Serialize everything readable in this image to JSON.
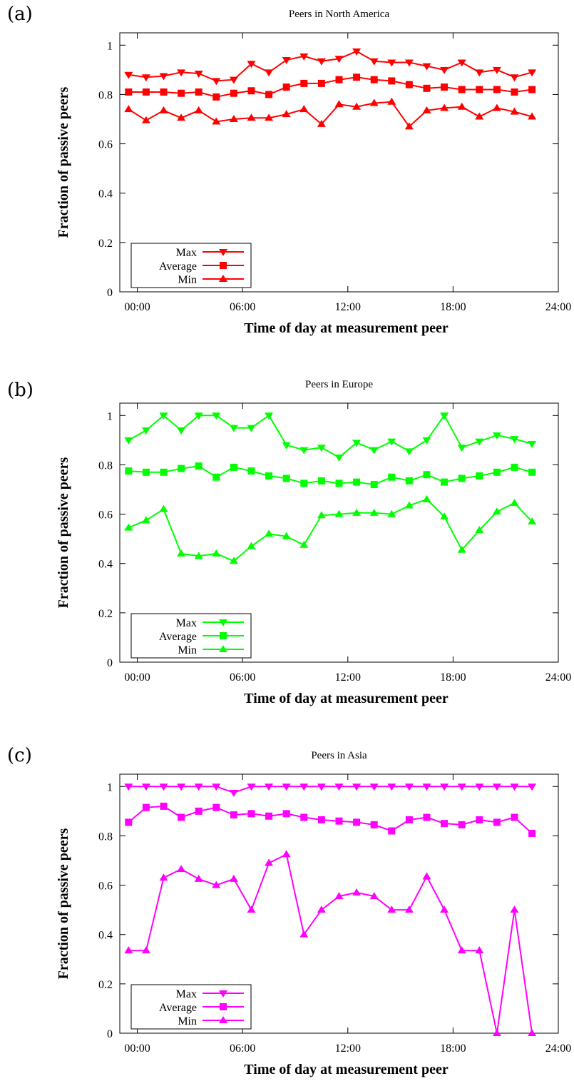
{
  "chart_data": [
    {
      "panel_label": "(a)",
      "type": "line",
      "title": "Peers in North America",
      "xlabel": "Time of day at measurement peer",
      "ylabel": "Fraction of passive peers",
      "x_ticks": [
        "00:00",
        "06:00",
        "12:00",
        "18:00",
        "24:00"
      ],
      "y_ticks": [
        "0",
        "0.2",
        "0.4",
        "0.6",
        "0.8",
        "1"
      ],
      "xlim": [
        -1,
        24
      ],
      "ylim": [
        0,
        1.05
      ],
      "legend_position": "bottom-left",
      "color": "#ff0000",
      "x": [
        -0.5,
        0.5,
        1.5,
        2.5,
        3.5,
        4.5,
        5.5,
        6.5,
        7.5,
        8.5,
        9.5,
        10.5,
        11.5,
        12.5,
        13.5,
        14.5,
        15.5,
        16.5,
        17.5,
        18.5,
        19.5,
        20.5,
        21.5,
        22.5
      ],
      "series": [
        {
          "name": "Max",
          "marker": "triangle-down",
          "values": [
            0.88,
            0.87,
            0.875,
            0.89,
            0.885,
            0.855,
            0.86,
            0.925,
            0.89,
            0.94,
            0.955,
            0.935,
            0.945,
            0.975,
            0.935,
            0.93,
            0.93,
            0.915,
            0.9,
            0.93,
            0.89,
            0.9,
            0.87,
            0.89
          ]
        },
        {
          "name": "Average",
          "marker": "square",
          "values": [
            0.81,
            0.81,
            0.81,
            0.805,
            0.81,
            0.79,
            0.805,
            0.815,
            0.8,
            0.83,
            0.845,
            0.845,
            0.86,
            0.87,
            0.86,
            0.855,
            0.84,
            0.825,
            0.83,
            0.82,
            0.82,
            0.82,
            0.81,
            0.82
          ]
        },
        {
          "name": "Min",
          "marker": "triangle-up",
          "values": [
            0.74,
            0.695,
            0.735,
            0.705,
            0.735,
            0.69,
            0.7,
            0.705,
            0.705,
            0.72,
            0.74,
            0.68,
            0.76,
            0.75,
            0.765,
            0.77,
            0.67,
            0.735,
            0.745,
            0.75,
            0.71,
            0.745,
            0.73,
            0.71
          ]
        }
      ]
    },
    {
      "panel_label": "(b)",
      "type": "line",
      "title": "Peers in Europe",
      "xlabel": "Time of day at measurement peer",
      "ylabel": "Fraction of passive peers",
      "x_ticks": [
        "00:00",
        "06:00",
        "12:00",
        "18:00",
        "24:00"
      ],
      "y_ticks": [
        "0",
        "0.2",
        "0.4",
        "0.6",
        "0.8",
        "1"
      ],
      "xlim": [
        -1,
        24
      ],
      "ylim": [
        0,
        1.05
      ],
      "legend_position": "bottom-left",
      "color": "#00ff00",
      "x": [
        -0.5,
        0.5,
        1.5,
        2.5,
        3.5,
        4.5,
        5.5,
        6.5,
        7.5,
        8.5,
        9.5,
        10.5,
        11.5,
        12.5,
        13.5,
        14.5,
        15.5,
        16.5,
        17.5,
        18.5,
        19.5,
        20.5,
        21.5,
        22.5
      ],
      "series": [
        {
          "name": "Max",
          "marker": "triangle-down",
          "values": [
            0.9,
            0.94,
            1.0,
            0.94,
            1.0,
            1.0,
            0.95,
            0.95,
            1.0,
            0.88,
            0.86,
            0.87,
            0.83,
            0.89,
            0.86,
            0.895,
            0.855,
            0.9,
            1.0,
            0.87,
            0.895,
            0.92,
            0.905,
            0.885
          ]
        },
        {
          "name": "Average",
          "marker": "square",
          "values": [
            0.775,
            0.77,
            0.77,
            0.785,
            0.795,
            0.75,
            0.79,
            0.775,
            0.755,
            0.745,
            0.725,
            0.735,
            0.725,
            0.73,
            0.72,
            0.75,
            0.735,
            0.76,
            0.73,
            0.745,
            0.755,
            0.77,
            0.79,
            0.77
          ]
        },
        {
          "name": "Min",
          "marker": "triangle-up",
          "values": [
            0.545,
            0.575,
            0.62,
            0.44,
            0.43,
            0.44,
            0.41,
            0.47,
            0.52,
            0.51,
            0.475,
            0.595,
            0.6,
            0.605,
            0.605,
            0.6,
            0.635,
            0.66,
            0.59,
            0.455,
            0.535,
            0.61,
            0.645,
            0.57
          ]
        }
      ]
    },
    {
      "panel_label": "(c)",
      "type": "line",
      "title": "Peers in Asia",
      "xlabel": "Time of day at measurement peer",
      "ylabel": "Fraction of passive peers",
      "x_ticks": [
        "00:00",
        "06:00",
        "12:00",
        "18:00",
        "24:00"
      ],
      "y_ticks": [
        "0",
        "0.2",
        "0.4",
        "0.6",
        "0.8",
        "1"
      ],
      "xlim": [
        -1,
        24
      ],
      "ylim": [
        0,
        1.05
      ],
      "legend_position": "bottom-left",
      "color": "#ff00ff",
      "x": [
        -0.5,
        0.5,
        1.5,
        2.5,
        3.5,
        4.5,
        5.5,
        6.5,
        7.5,
        8.5,
        9.5,
        10.5,
        11.5,
        12.5,
        13.5,
        14.5,
        15.5,
        16.5,
        17.5,
        18.5,
        19.5,
        20.5,
        21.5,
        22.5
      ],
      "series": [
        {
          "name": "Max",
          "marker": "triangle-down",
          "values": [
            1.0,
            1.0,
            1.0,
            1.0,
            1.0,
            1.0,
            0.975,
            1.0,
            1.0,
            1.0,
            1.0,
            1.0,
            1.0,
            1.0,
            1.0,
            1.0,
            1.0,
            1.0,
            1.0,
            1.0,
            1.0,
            1.0,
            1.0,
            1.0
          ]
        },
        {
          "name": "Average",
          "marker": "square",
          "values": [
            0.855,
            0.915,
            0.92,
            0.875,
            0.9,
            0.915,
            0.885,
            0.89,
            0.88,
            0.89,
            0.875,
            0.865,
            0.86,
            0.855,
            0.845,
            0.82,
            0.865,
            0.875,
            0.85,
            0.845,
            0.865,
            0.855,
            0.875,
            0.81
          ]
        },
        {
          "name": "Min",
          "marker": "triangle-up",
          "values": [
            0.335,
            0.335,
            0.63,
            0.665,
            0.625,
            0.6,
            0.625,
            0.5,
            0.69,
            0.725,
            0.4,
            0.5,
            0.555,
            0.57,
            0.555,
            0.5,
            0.5,
            0.635,
            0.5,
            0.335,
            0.335,
            0.0,
            0.5,
            0.0
          ]
        }
      ]
    }
  ]
}
